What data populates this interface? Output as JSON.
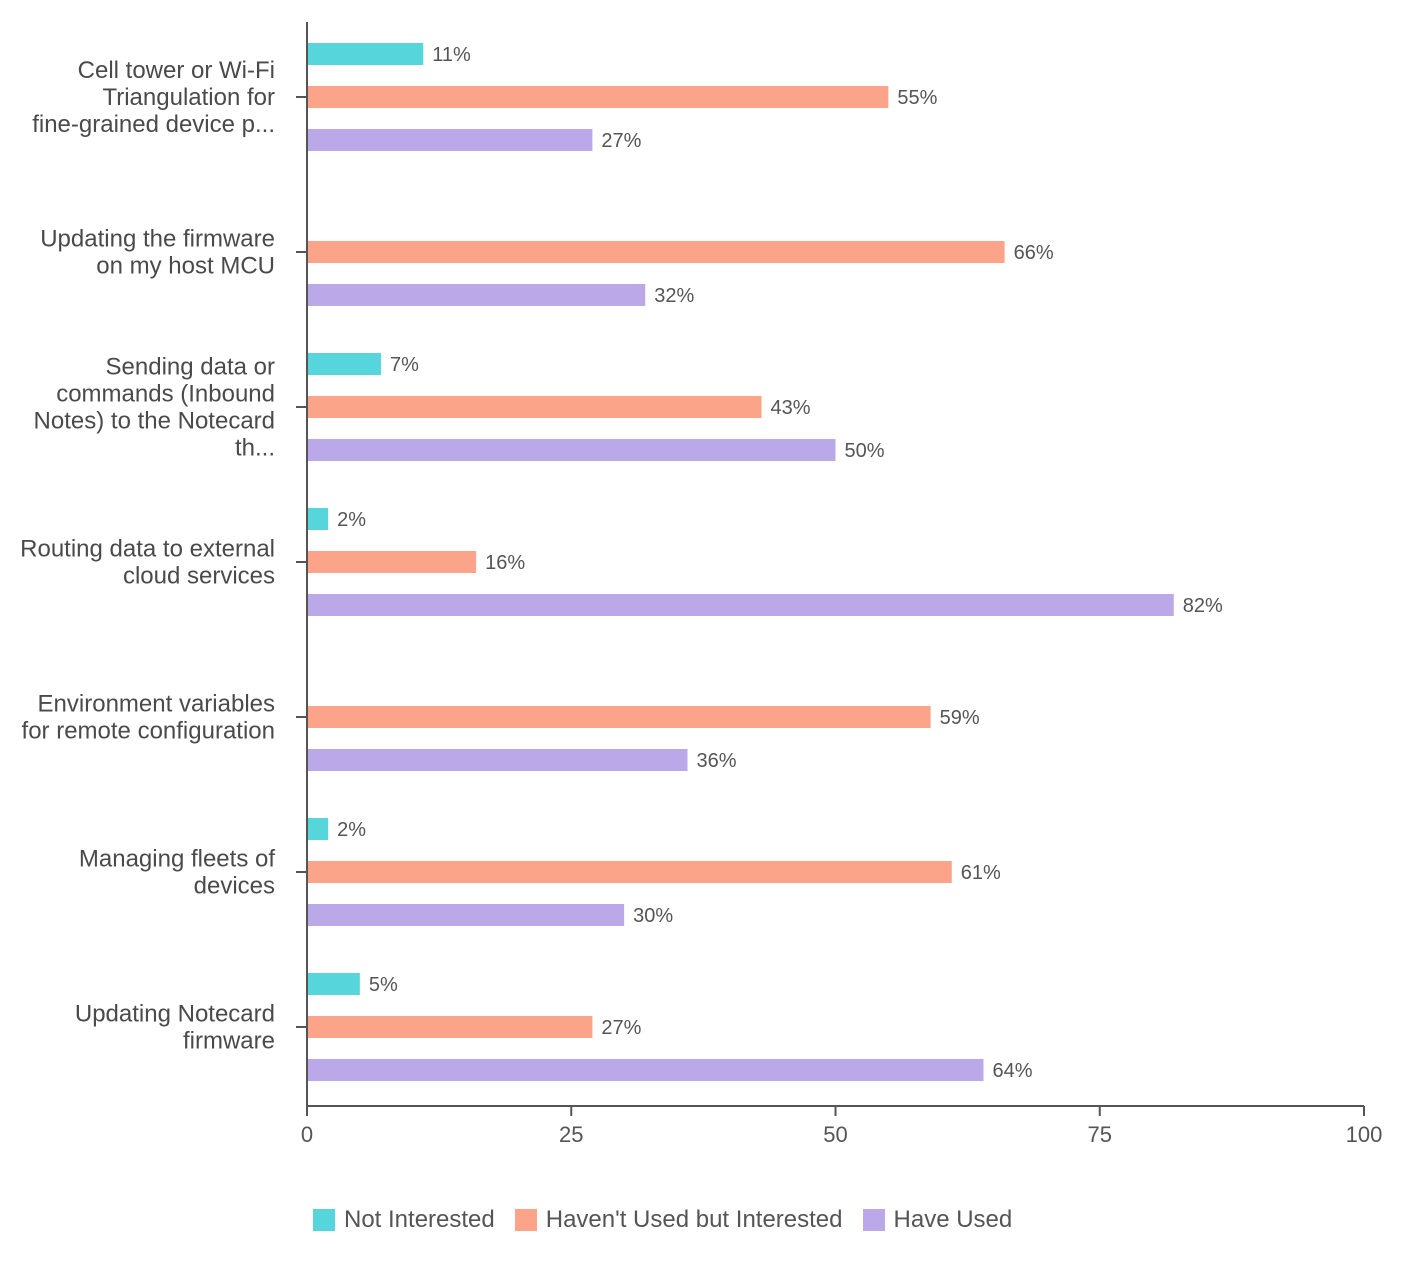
{
  "chart_data": {
    "type": "bar",
    "orientation": "horizontal",
    "categories": [
      "Cell tower or Wi-Fi Triangulation for fine-grained device p...",
      "Updating the firmware on my host MCU",
      "Sending data or commands (Inbound Notes) to the Notecard th...",
      "Routing data to external cloud services",
      "Environment variables for remote configuration",
      "Managing fleets of devices",
      "Updating Notecard firmware"
    ],
    "series": [
      {
        "name": "Not Interested",
        "color": "#56d6db",
        "values": [
          11,
          0,
          7,
          2,
          0,
          2,
          5
        ]
      },
      {
        "name": "Haven't Used but Interested",
        "color": "#fba48a",
        "values": [
          55,
          66,
          43,
          16,
          59,
          61,
          27
        ]
      },
      {
        "name": "Have Used",
        "color": "#bba8e8",
        "values": [
          27,
          32,
          50,
          82,
          36,
          30,
          64
        ]
      }
    ],
    "xlim": [
      0,
      100
    ],
    "xticks": [
      "0",
      "25",
      "50",
      "75",
      "100"
    ],
    "value_suffix": "%",
    "grid": false,
    "legend_position": "bottom"
  },
  "category_lines": [
    [
      "Cell tower or Wi-Fi",
      "Triangulation for",
      "fine-grained device p..."
    ],
    [
      "Updating the firmware",
      "on my host MCU"
    ],
    [
      "Sending data or",
      "commands (Inbound",
      "Notes) to the Notecard",
      "th..."
    ],
    [
      "Routing data to external",
      "cloud services"
    ],
    [
      "Environment variables",
      "for remote configuration"
    ],
    [
      "Managing fleets of",
      "devices"
    ],
    [
      "Updating Notecard",
      "firmware"
    ]
  ],
  "legend": {
    "items": [
      {
        "label": "Not Interested",
        "color": "#56d6db"
      },
      {
        "label": "Haven't Used but Interested",
        "color": "#fba48a"
      },
      {
        "label": "Have Used",
        "color": "#bba8e8"
      }
    ]
  }
}
